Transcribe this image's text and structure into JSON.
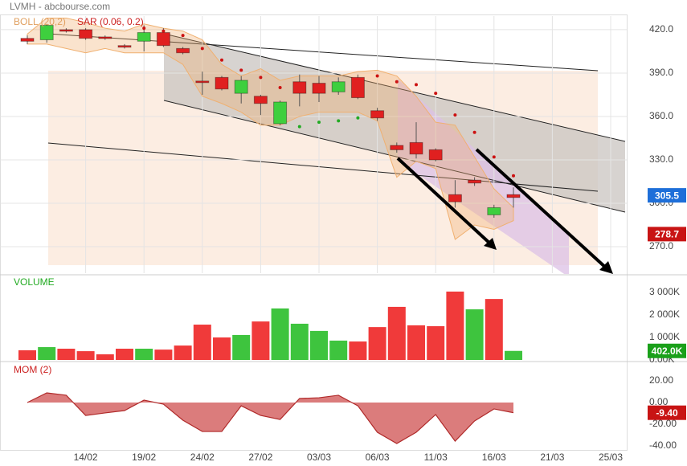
{
  "chart_data": [
    {
      "type": "candlestick",
      "title": "LVMH - abcbourse.com",
      "open": [
        414,
        413,
        420,
        420,
        415,
        409,
        412,
        418,
        407,
        384.5,
        387,
        376,
        374,
        355,
        384,
        383,
        377,
        387,
        364,
        340,
        342,
        337,
        306,
        316,
        292,
        306
      ],
      "close": [
        412,
        423,
        419,
        414,
        414,
        408,
        418,
        409,
        404,
        384,
        379,
        385,
        369,
        370,
        376,
        376,
        384,
        373,
        359,
        337,
        334,
        330,
        301,
        314,
        297,
        304
      ],
      "high": [
        416,
        424,
        421,
        421,
        416,
        410,
        423,
        421,
        408,
        391,
        388,
        388,
        375,
        371,
        389,
        388,
        387,
        389,
        366,
        342,
        356,
        338,
        316,
        318,
        299,
        311
      ],
      "low": [
        410,
        411,
        418,
        413,
        413,
        407,
        405,
        408,
        403,
        375,
        378,
        369,
        361,
        354,
        367,
        370,
        375,
        372,
        357,
        335,
        331,
        329,
        297,
        312,
        290,
        297
      ],
      "up_color": "#3ecf3e",
      "down_color": "#e02020",
      "bollinger": {
        "name": "BOLL (20,2)",
        "color": "#f0b070",
        "upper": [
          417,
          428,
          428,
          425,
          421,
          419,
          424,
          421,
          419,
          413,
          396,
          388,
          393,
          385,
          388,
          388,
          388,
          391,
          392,
          388,
          374,
          356,
          354,
          332,
          310,
          297
        ],
        "lower": [
          410,
          410,
          407,
          404,
          407,
          404,
          404,
          404,
          396,
          374,
          369,
          363,
          354,
          354,
          360,
          363,
          363,
          363,
          357,
          318,
          329,
          324,
          275,
          285,
          282,
          288
        ]
      },
      "sar": {
        "name": "SAR (0.06, 0.2)",
        "up_color": "#22aa22",
        "down_color": "#cc1111",
        "values": [
          null,
          null,
          null,
          null,
          null,
          null,
          421,
          419,
          416,
          407,
          399,
          392,
          387,
          380,
          353,
          356,
          357,
          359,
          388,
          384,
          382,
          376,
          361,
          349,
          332,
          319
        ],
        "side": [
          "down",
          "down",
          "down",
          "down",
          "down",
          "down",
          "down",
          "down",
          "down",
          "down",
          "down",
          "down",
          "down",
          "down",
          "up",
          "up",
          "up",
          "up",
          "down",
          "down",
          "down",
          "down",
          "down",
          "down",
          "down",
          "down"
        ]
      },
      "ylim": [
        251.7,
        429.4
      ],
      "yticks": [
        {
          "value": 420,
          "label": "420.0"
        },
        {
          "value": 390,
          "label": "390.0"
        },
        {
          "value": 360,
          "label": "360.0"
        },
        {
          "value": 330,
          "label": "330.0"
        },
        {
          "value": 300,
          "label": "300.0"
        },
        {
          "value": 270,
          "label": "270.0"
        }
      ],
      "markers": [
        {
          "value": 305.5,
          "color": "#1e6fd9"
        },
        {
          "value": 278.7,
          "color": "#c81414"
        }
      ],
      "grid": true
    },
    {
      "type": "bar",
      "title": "VOLUME",
      "title_color": "#22aa22",
      "values": [
        430,
        570,
        500,
        390,
        250,
        500,
        500,
        460,
        640,
        1570,
        1000,
        1110,
        1710,
        2290,
        1610,
        1290,
        860,
        820,
        1460,
        2360,
        1540,
        1500,
        3040,
        2250,
        2710,
        402
      ],
      "colors": [
        "#f03a3a",
        "#3ec43e",
        "#f03a3a",
        "#f03a3a",
        "#f03a3a",
        "#f03a3a",
        "#3ec43e",
        "#f03a3a",
        "#f03a3a",
        "#f03a3a",
        "#f03a3a",
        "#3ec43e",
        "#f03a3a",
        "#3ec43e",
        "#3ec43e",
        "#3ec43e",
        "#3ec43e",
        "#f03a3a",
        "#f03a3a",
        "#f03a3a",
        "#f03a3a",
        "#f03a3a",
        "#f03a3a",
        "#3ec43e",
        "#f03a3a",
        "#3ec43e"
      ],
      "ylim": [
        0,
        3750
      ],
      "yticks": [
        {
          "value": 3000,
          "label": "3 000K"
        },
        {
          "value": 2000,
          "label": "2 000K"
        },
        {
          "value": 1000,
          "label": "1 000K"
        },
        {
          "value": 0,
          "label": "0.00K"
        }
      ],
      "markers": [
        {
          "value": 402,
          "label": "402.0K",
          "color": "#1aa01a"
        }
      ],
      "grid": true
    },
    {
      "type": "area",
      "title": "MOM (2)",
      "title_color": "#cc2222",
      "color": "#cc4444",
      "categories": [
        null,
        null,
        null,
        "14/02",
        null,
        null,
        "19/02",
        null,
        null,
        "24/02",
        null,
        null,
        "27/02",
        null,
        null,
        "03/03",
        null,
        null,
        "06/03",
        null,
        null,
        "11/03",
        null,
        null,
        "16/03",
        null,
        null,
        "21/03",
        null,
        null,
        "25/03"
      ],
      "values": [
        0,
        8.9,
        6.7,
        -11.9,
        -9.6,
        -7.4,
        2.2,
        -1.5,
        -16.3,
        -26.7,
        -26.7,
        -3,
        -11.9,
        -15.6,
        3.7,
        4.4,
        6.7,
        -3,
        -27.4,
        -37.8,
        -27.4,
        -11.1,
        -35.6,
        -17,
        -5.9,
        -9.4,
        null,
        null,
        null,
        null,
        null
      ],
      "ylim": [
        -43.7,
        36.3
      ],
      "yticks": [
        {
          "value": 20,
          "label": "20.00"
        },
        {
          "value": 0,
          "label": "0.00"
        },
        {
          "value": -20,
          "label": "-20.00"
        },
        {
          "value": -40,
          "label": "-40.00"
        }
      ],
      "markers": [
        {
          "value": -9.4,
          "label": "-9.40",
          "color": "#c81414"
        }
      ],
      "grid": true
    }
  ]
}
